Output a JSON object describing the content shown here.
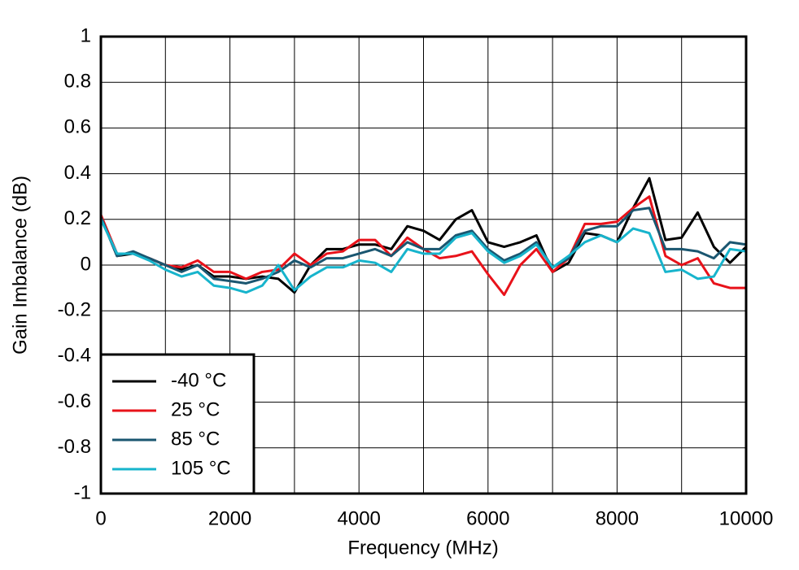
{
  "chart_data": {
    "type": "line",
    "xlabel": "Frequency (MHz)",
    "ylabel": "Gain Imbalance (dB)",
    "x": [
      0,
      250,
      500,
      750,
      1000,
      1250,
      1500,
      1750,
      2000,
      2250,
      2500,
      2750,
      3000,
      3250,
      3500,
      3750,
      4000,
      4250,
      4500,
      4750,
      5000,
      5250,
      5500,
      5750,
      6000,
      6250,
      6500,
      6750,
      7000,
      7250,
      7500,
      7750,
      8000,
      8250,
      8500,
      8750,
      9000,
      9250,
      9500,
      9750,
      10000
    ],
    "series": [
      {
        "name": "-40 °C",
        "color": "#000000",
        "values": [
          0.21,
          0.04,
          0.05,
          0.03,
          0.0,
          -0.02,
          0.0,
          -0.05,
          -0.05,
          -0.06,
          -0.05,
          -0.06,
          -0.12,
          0.0,
          0.07,
          0.07,
          0.09,
          0.09,
          0.07,
          0.17,
          0.15,
          0.11,
          0.2,
          0.24,
          0.1,
          0.08,
          0.1,
          0.13,
          -0.03,
          0.01,
          0.14,
          0.13,
          0.1,
          0.25,
          0.38,
          0.11,
          0.12,
          0.23,
          0.08,
          0.01,
          0.08
        ]
      },
      {
        "name": "25 °C",
        "color": "#e8121a",
        "values": [
          0.22,
          0.05,
          0.05,
          0.03,
          0.0,
          -0.01,
          0.02,
          -0.03,
          -0.03,
          -0.06,
          -0.03,
          -0.02,
          0.05,
          0.0,
          0.05,
          0.06,
          0.11,
          0.11,
          0.04,
          0.12,
          0.07,
          0.03,
          0.04,
          0.06,
          -0.04,
          -0.13,
          0.0,
          0.07,
          -0.03,
          0.03,
          0.18,
          0.18,
          0.19,
          0.25,
          0.3,
          0.04,
          0.0,
          0.03,
          -0.08,
          -0.1,
          -0.1
        ]
      },
      {
        "name": "85 °C",
        "color": "#1a5670",
        "values": [
          0.21,
          0.04,
          0.06,
          0.03,
          0.0,
          -0.03,
          0.0,
          -0.06,
          -0.07,
          -0.08,
          -0.06,
          -0.03,
          0.02,
          -0.01,
          0.03,
          0.03,
          0.05,
          0.07,
          0.04,
          0.1,
          0.07,
          0.07,
          0.13,
          0.15,
          0.07,
          0.02,
          0.05,
          0.1,
          -0.01,
          0.03,
          0.15,
          0.17,
          0.17,
          0.24,
          0.25,
          0.07,
          0.07,
          0.06,
          0.03,
          0.1,
          0.09
        ]
      },
      {
        "name": "105 °C",
        "color": "#17b4cc",
        "values": [
          0.2,
          0.05,
          0.05,
          0.02,
          -0.02,
          -0.05,
          -0.03,
          -0.09,
          -0.1,
          -0.12,
          -0.09,
          0.0,
          -0.11,
          -0.05,
          -0.01,
          -0.01,
          0.02,
          0.01,
          -0.03,
          0.07,
          0.05,
          0.05,
          0.12,
          0.14,
          0.06,
          0.01,
          0.04,
          0.09,
          -0.01,
          0.04,
          0.1,
          0.13,
          0.1,
          0.16,
          0.14,
          -0.03,
          -0.02,
          -0.06,
          -0.05,
          0.07,
          0.06
        ]
      }
    ],
    "xlim": [
      0,
      10000
    ],
    "xticks": [
      0,
      2000,
      4000,
      6000,
      8000,
      10000
    ],
    "xminorticks": [
      1000,
      3000,
      5000,
      7000,
      9000
    ],
    "ylim": [
      -1,
      1
    ],
    "yticks": [
      1,
      0.8,
      0.6,
      0.4,
      0.2,
      0,
      -0.2,
      -0.4,
      -0.6,
      -0.8,
      -1
    ],
    "grid": true,
    "legend": "lower left"
  }
}
